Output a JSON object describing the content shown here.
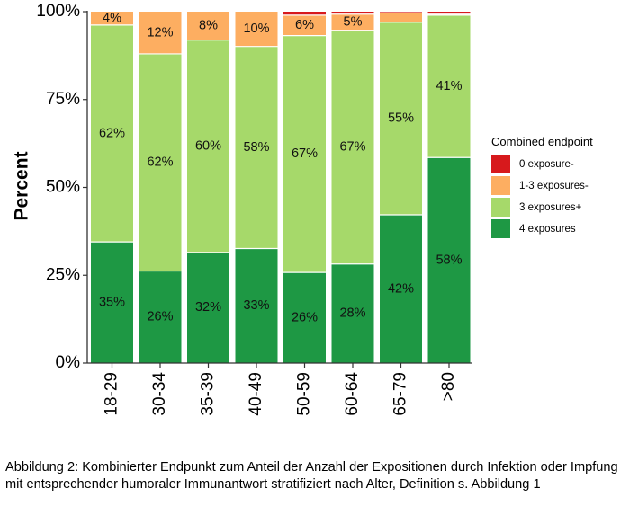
{
  "chart_data": {
    "type": "bar",
    "stacked": true,
    "orientation": "vertical",
    "categories": [
      "18-29",
      "30-34",
      "35-39",
      "40-49",
      "50-59",
      "60-64",
      "65-79",
      ">80"
    ],
    "ylabel": "Percent",
    "xlabel": "",
    "ylim": [
      0,
      1
    ],
    "yticks": [
      "0%",
      "25%",
      "50%",
      "75%",
      "100%"
    ],
    "legend": {
      "title": "Combined endpoint",
      "placement": "right"
    },
    "series": [
      {
        "name": "4 exposures",
        "color": "#1E9844",
        "values": [
          0.345,
          0.262,
          0.315,
          0.326,
          0.258,
          0.282,
          0.422,
          0.585
        ],
        "labels": [
          "35%",
          "26%",
          "32%",
          "33%",
          "26%",
          "28%",
          "42%",
          "58%"
        ]
      },
      {
        "name": "3 exposures+",
        "color": "#A6D96A",
        "values": [
          0.617,
          0.618,
          0.604,
          0.575,
          0.674,
          0.665,
          0.548,
          0.405
        ],
        "labels": [
          "62%",
          "62%",
          "60%",
          "58%",
          "67%",
          "67%",
          "55%",
          "41%"
        ]
      },
      {
        "name": "1-3 exposures-",
        "color": "#FDAE61",
        "values": [
          0.038,
          0.12,
          0.081,
          0.099,
          0.058,
          0.046,
          0.027,
          0.003
        ],
        "labels": [
          "4%",
          "12%",
          "8%",
          "10%",
          "6%",
          "5%",
          "",
          ""
        ]
      },
      {
        "name": "0 exposure-",
        "color": "#D7191C",
        "values": [
          0,
          0,
          0,
          0,
          0.01,
          0.007,
          0.003,
          0.007
        ],
        "labels": [
          "",
          "",
          "",
          "",
          "",
          "",
          "",
          ""
        ]
      }
    ],
    "grid": false
  },
  "caption": "Abbildung 2: Kombinierter Endpunkt zum Anteil der Anzahl der Expositionen durch Infektion oder Impfung mit entsprechender humoraler Immunantwort stratifiziert nach Alter, Definition s. Abbildung 1"
}
